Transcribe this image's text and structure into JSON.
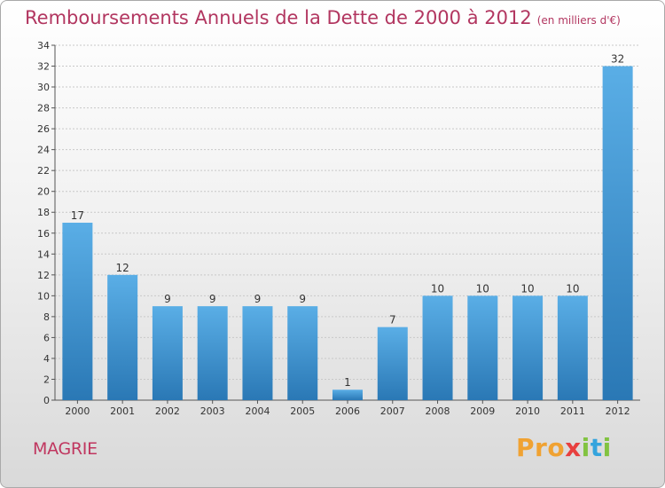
{
  "title": "Remboursements Annuels de la Dette de 2000 à 2012",
  "subtitle": "(en milliers d'€)",
  "city": "MAGRIE",
  "logo": {
    "p1": "Pro",
    "p2": "x",
    "p3": "i",
    "p4": "t",
    "p5": "i"
  },
  "colors": {
    "title": "#b23660",
    "bar_light": "#5aaee6",
    "bar_dark": "#2a78b5"
  },
  "chart_data": {
    "type": "bar",
    "categories": [
      "2000",
      "2001",
      "2002",
      "2003",
      "2004",
      "2005",
      "2006",
      "2007",
      "2008",
      "2009",
      "2010",
      "2011",
      "2012"
    ],
    "values": [
      17,
      12,
      9,
      9,
      9,
      9,
      1,
      7,
      10,
      10,
      10,
      10,
      32
    ],
    "ylim": [
      0,
      34
    ],
    "yticks": [
      0,
      2,
      4,
      6,
      8,
      10,
      12,
      14,
      16,
      18,
      20,
      22,
      24,
      26,
      28,
      30,
      32,
      34
    ],
    "grid": true,
    "data_labels": true
  }
}
